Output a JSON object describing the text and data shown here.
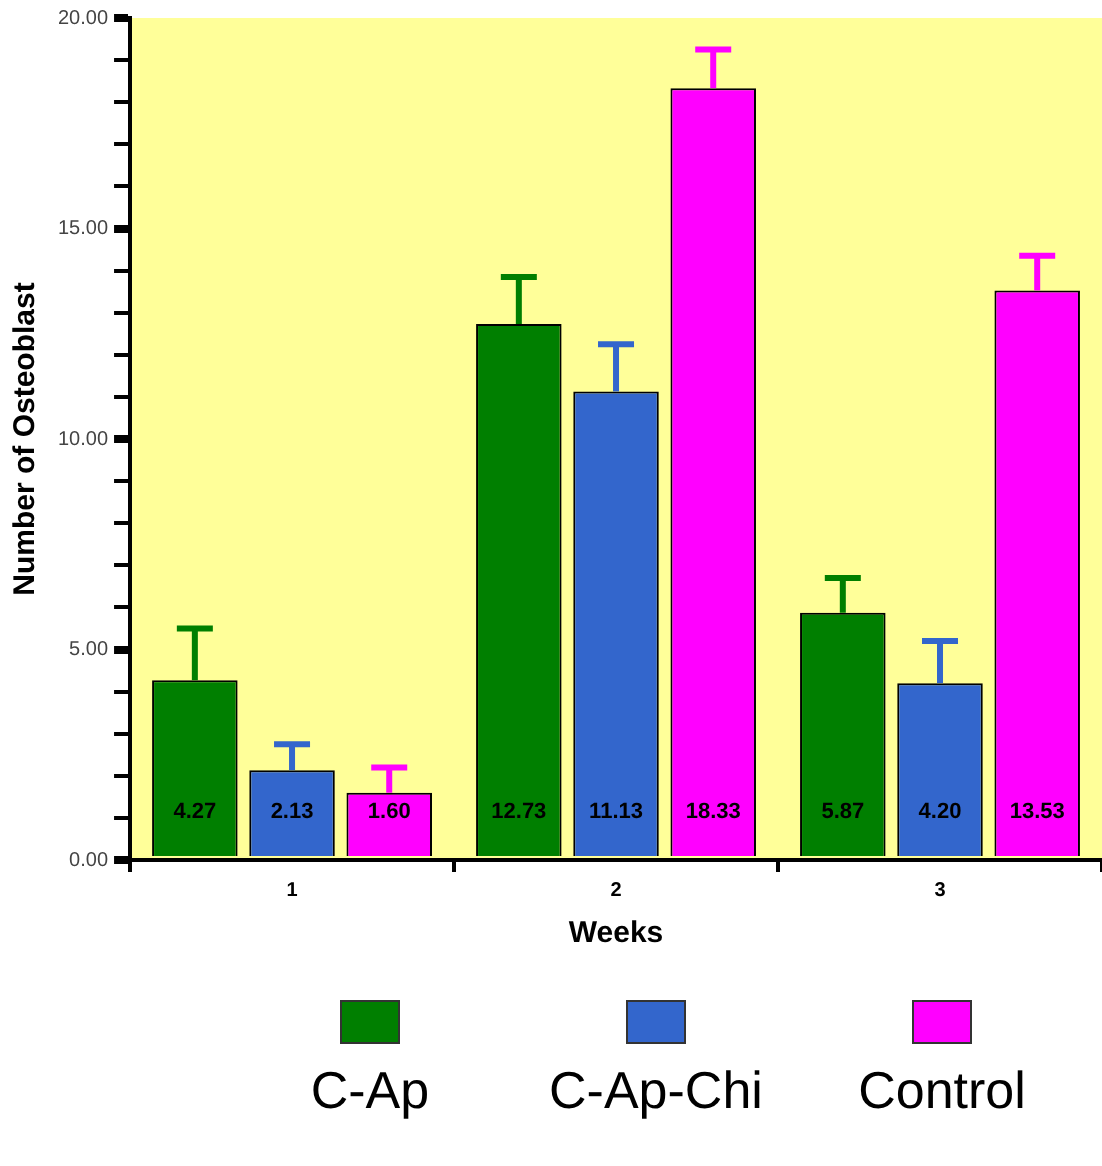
{
  "chart_data": {
    "type": "bar",
    "xlabel": "Weeks",
    "ylabel": "Number of Osteoblast",
    "categories": [
      "1",
      "2",
      "3"
    ],
    "series": [
      {
        "name": "C-Ap",
        "color": "#007f00",
        "values": [
          4.27,
          12.73,
          5.87
        ],
        "value_labels": [
          "4.27",
          "12.73",
          "5.87"
        ],
        "errors": [
          [
            4.27,
            5.5
          ],
          [
            12.73,
            13.85
          ],
          [
            5.87,
            6.7
          ]
        ]
      },
      {
        "name": "C-Ap-Chi",
        "color": "#3366cc",
        "values": [
          2.13,
          11.13,
          4.2
        ],
        "value_labels": [
          "2.13",
          "11.13",
          "4.20"
        ],
        "errors": [
          [
            2.13,
            2.75
          ],
          [
            11.13,
            12.25
          ],
          [
            4.2,
            5.2
          ]
        ]
      },
      {
        "name": "Control",
        "color": "#ff00ff",
        "values": [
          1.6,
          18.33,
          13.53
        ],
        "value_labels": [
          "1.60",
          "18.33",
          "13.53"
        ],
        "errors": [
          [
            1.6,
            2.2
          ],
          [
            18.33,
            19.25
          ],
          [
            13.53,
            14.35
          ]
        ]
      }
    ],
    "ylim": [
      0,
      20
    ],
    "yticks": [
      {
        "value": 0,
        "label": "0.00"
      },
      {
        "value": 1,
        "label": null
      },
      {
        "value": 2,
        "label": null
      },
      {
        "value": 3,
        "label": null
      },
      {
        "value": 4,
        "label": null
      },
      {
        "value": 5,
        "label": "5.00"
      },
      {
        "value": 6,
        "label": null
      },
      {
        "value": 7,
        "label": null
      },
      {
        "value": 8,
        "label": null
      },
      {
        "value": 9,
        "label": null
      },
      {
        "value": 10,
        "label": "10.00"
      },
      {
        "value": 11,
        "label": null
      },
      {
        "value": 12,
        "label": null
      },
      {
        "value": 13,
        "label": null
      },
      {
        "value": 14,
        "label": null
      },
      {
        "value": 15,
        "label": "15.00"
      },
      {
        "value": 16,
        "label": null
      },
      {
        "value": 17,
        "label": null
      },
      {
        "value": 18,
        "label": null
      },
      {
        "value": 19,
        "label": null
      },
      {
        "value": 20,
        "label": "20.00"
      }
    ],
    "grid": false,
    "legend": "bottom"
  }
}
